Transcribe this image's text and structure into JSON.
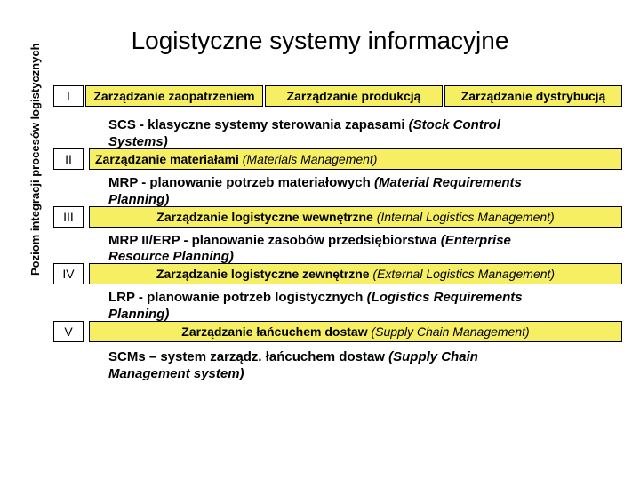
{
  "title": "Logistyczne systemy informacyjne",
  "y_axis_label": "Poziom integracji procesów logistycznych",
  "colors": {
    "yellow": "#f7ef63",
    "border": "#000000",
    "bg": "#ffffff",
    "text": "#000000"
  },
  "levels": {
    "i": {
      "label": "I",
      "boxes": [
        "Zarządzanie zaopatrzeniem",
        "Zarządzanie produkcją",
        "Zarządzanie dystrybucją"
      ]
    },
    "ii": {
      "label": "II",
      "desc_bold": "SCS",
      "desc_rest": " - klasyczne systemy sterowania zapasami ",
      "desc_italic": "(Stock Control",
      "desc_cut": "Systems)",
      "box_main": "Zarządzanie materiałami ",
      "box_italic": "(Materials Management)"
    },
    "iii": {
      "label": "III",
      "desc_bold": "MRP",
      "desc_rest": " - planowanie potrzeb materiałowych ",
      "desc_italic": "(Material Requirements",
      "desc_cut": "Planning)",
      "box_main": "Zarządzanie logistyczne wewnętrzne ",
      "box_italic": "(Internal Logistics Management)"
    },
    "iv": {
      "label": "IV",
      "desc_bold": "MRP II/ERP",
      "desc_rest": " - planowanie zasobów przedsiębiorstwa ",
      "desc_italic": "(Enterprise",
      "desc_cut": "Resource Planning)",
      "box_main": "Zarządzanie logistyczne zewnętrzne ",
      "box_italic": "(External Logistics Management)"
    },
    "v": {
      "label": "V",
      "desc_bold": "LRP",
      "desc_rest": " -  planowanie potrzeb logistycznych ",
      "desc_italic": "(Logistics Requirements",
      "desc_cut": "Planning)",
      "box_main": "Zarządzanie łańcuchem dostaw ",
      "box_italic": "(Supply Chain Management)"
    }
  },
  "footer": {
    "bold": "SCMs",
    "rest": " – system zarządz. łańcuchem dostaw ",
    "italic": "(Supply Chain",
    "line2": "Management system)"
  }
}
